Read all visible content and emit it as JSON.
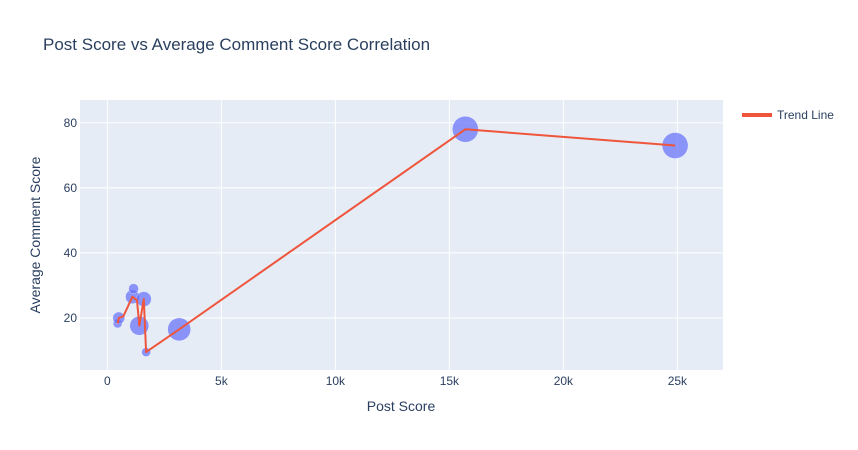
{
  "chart_data": {
    "type": "scatter",
    "title": "Post Score vs Average Comment Score Correlation",
    "xlabel": "Post Score",
    "ylabel": "Average Comment Score",
    "xlim": [
      -1200,
      27000
    ],
    "ylim": [
      4,
      87
    ],
    "x_ticks": [
      0,
      5000,
      10000,
      15000,
      20000,
      25000
    ],
    "x_tick_labels": [
      "0",
      "5k",
      "10k",
      "15k",
      "20k",
      "25k"
    ],
    "y_ticks": [
      20,
      40,
      60,
      80
    ],
    "y_tick_labels": [
      "20",
      "40",
      "60",
      "80"
    ],
    "grid": true,
    "legend_position": "top-right",
    "colors": {
      "bubble": "#636efa",
      "trend": "#ef553b",
      "plot_bg": "#e5ecf6",
      "grid": "#ffffff",
      "text": "#2a3f5f"
    },
    "bubbles": [
      {
        "x": 450,
        "y": 18.3,
        "size": 8
      },
      {
        "x": 500,
        "y": 20,
        "size": 11
      },
      {
        "x": 1100,
        "y": 26.5,
        "size": 13
      },
      {
        "x": 1150,
        "y": 29,
        "size": 9
      },
      {
        "x": 1400,
        "y": 17.6,
        "size": 18
      },
      {
        "x": 1600,
        "y": 25.8,
        "size": 14
      },
      {
        "x": 1700,
        "y": 9.5,
        "size": 8
      },
      {
        "x": 3150,
        "y": 16.5,
        "size": 22
      },
      {
        "x": 15700,
        "y": 78,
        "size": 25
      },
      {
        "x": 24900,
        "y": 73,
        "size": 25
      }
    ],
    "series": [
      {
        "name": "Trend Line",
        "type": "line",
        "x": [
          450,
          500,
          700,
          1100,
          1300,
          1400,
          1600,
          1700,
          3150,
          15700,
          24900
        ],
        "y": [
          18.3,
          20,
          20.5,
          26.5,
          25.5,
          17.6,
          25.8,
          9.5,
          16.5,
          78,
          73
        ]
      }
    ]
  }
}
